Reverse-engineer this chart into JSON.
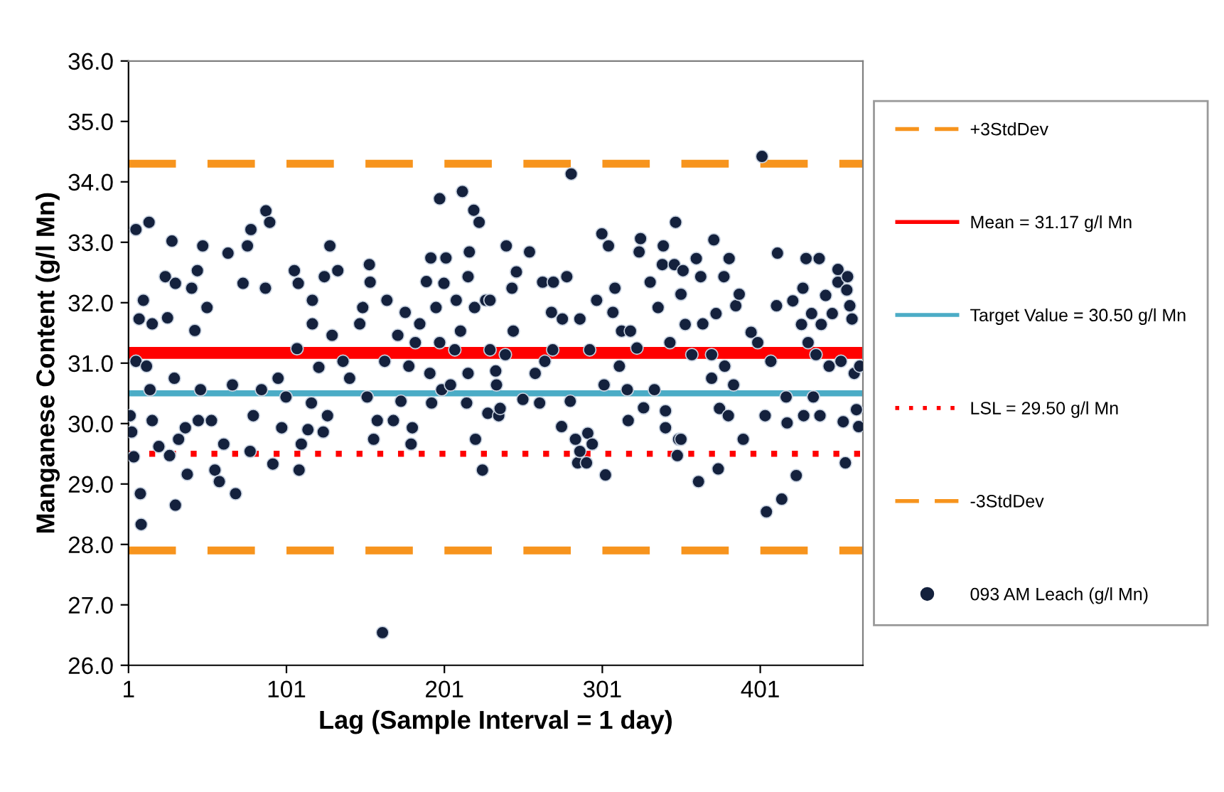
{
  "chart_data": {
    "type": "scatter",
    "xlabel": "Lag (Sample Interval = 1 day)",
    "ylabel": "Manganese Content (g/l Mn)",
    "xlim": [
      1,
      466
    ],
    "xticks": [
      1,
      101,
      201,
      301,
      401
    ],
    "ylim": [
      26,
      36
    ],
    "yticks": [
      {
        "value": 26,
        "label": "26.0"
      },
      {
        "value": 27,
        "label": "27.0"
      },
      {
        "value": 28,
        "label": "28.0"
      },
      {
        "value": 29,
        "label": "29.0"
      },
      {
        "value": 30,
        "label": "30.0"
      },
      {
        "value": 31,
        "label": "31.0"
      },
      {
        "value": 32,
        "label": "32.0"
      },
      {
        "value": 33,
        "label": "33.0"
      },
      {
        "value": 34,
        "label": "34.0"
      },
      {
        "value": 35,
        "label": "35.0"
      },
      {
        "value": 36,
        "label": "36.0"
      }
    ],
    "grid": false,
    "legend": "right",
    "marker": "circle",
    "ref_lines": [
      {
        "axis": "y",
        "value": 34.3,
        "label": "+3StdDev",
        "color": "#f7941d",
        "line_style": "dashed"
      },
      {
        "axis": "y",
        "value": 31.17,
        "label": "Mean = 31.17 g/l Mn",
        "color": "#ff0000",
        "line_style": "solid"
      },
      {
        "axis": "y",
        "value": 30.5,
        "label": "Target Value = 30.50 g/l Mn",
        "color": "#4bacc6",
        "line_style": "solid"
      },
      {
        "axis": "y",
        "value": 29.5,
        "label": "LSL = 29.50 g/l Mn",
        "color": "#ff0000",
        "line_style": "dotted"
      },
      {
        "axis": "y",
        "value": 27.9,
        "label": "-3StdDev",
        "color": "#f7941d",
        "line_style": "dashed"
      }
    ],
    "series": [
      {
        "name": "093 AM Leach (g/l Mn)",
        "color": "#14213d",
        "x": [
          2,
          3,
          4.3,
          5.7,
          5.7,
          7.7,
          8.5,
          9,
          10.4,
          12.4,
          14,
          14.6,
          16,
          16,
          20.2,
          24.3,
          25.7,
          27,
          28.5,
          30,
          30.7,
          30.7,
          32.7,
          37,
          38.2,
          41,
          43,
          44.6,
          45.2,
          46.6,
          48,
          50.7,
          53.5,
          55.7,
          58.5,
          61.3,
          64,
          66.8,
          68.8,
          73.5,
          76.3,
          78,
          78.5,
          80,
          85.2,
          87.7,
          88,
          90.4,
          92.4,
          95.7,
          98,
          100.7,
          106,
          107.7,
          108.5,
          109,
          110.4,
          114.6,
          116.8,
          117.4,
          117.4,
          121.5,
          124.3,
          125,
          127,
          128.5,
          129.9,
          133.5,
          136.8,
          141,
          147.4,
          149.3,
          152.1,
          153.5,
          154,
          156.2,
          158.5,
          161.8,
          163.2,
          164.6,
          168.7,
          171.5,
          173.5,
          176.2,
          178.5,
          179.9,
          180.7,
          182.6,
          185.4,
          189.6,
          191.8,
          192.4,
          192.9,
          195.7,
          198,
          198,
          199.3,
          200.7,
          202,
          204.9,
          207.6,
          208.5,
          211.2,
          212.4,
          215.1,
          216,
          216,
          216.8,
          219.6,
          220.1,
          220.7,
          223,
          225.1,
          227.1,
          228.5,
          229.9,
          229.9,
          233.5,
          234,
          235.4,
          236.3,
          239.6,
          240.2,
          243.8,
          244.6,
          246.6,
          250.7,
          254.9,
          258.5,
          261.3,
          263.2,
          264.6,
          268.8,
          269.6,
          270,
          275.2,
          275.7,
          278.5,
          280.7,
          281.3,
          284,
          285.4,
          286.8,
          286.8,
          291,
          291.8,
          293,
          294.6,
          297.4,
          300.7,
          302.1,
          303,
          304.9,
          307.7,
          309,
          311.8,
          313.2,
          316.8,
          317.4,
          318.8,
          322.9,
          324.3,
          325.2,
          327.1,
          331.3,
          334,
          336.3,
          339,
          339.6,
          341,
          341,
          343.8,
          346.6,
          347.4,
          348.5,
          349.3,
          350.7,
          350.8,
          350.8,
          352.1,
          353.5,
          357.7,
          360.5,
          361.9,
          363.3,
          364.6,
          370.2,
          370.2,
          371.6,
          373,
          374.4,
          375.2,
          378,
          378.5,
          380.8,
          381.3,
          384.1,
          385.5,
          387.7,
          390.2,
          395.2,
          399.4,
          402.1,
          404.1,
          404.9,
          407.7,
          411.3,
          411.9,
          414.6,
          417.4,
          418,
          421.6,
          423.8,
          427.1,
          428,
          428.5,
          430,
          431.3,
          433.5,
          434.6,
          436.3,
          438.3,
          438.8,
          439.6,
          442.4,
          444.6,
          446.6,
          450.2,
          450.2,
          452.1,
          453.5,
          454.9,
          455.8,
          456.3,
          457.7,
          459.1,
          460.5,
          461.9,
          463.3,
          464
        ],
        "values": [
          30.13,
          29.86,
          29.45,
          33.21,
          31.03,
          31.73,
          28.84,
          28.33,
          32.04,
          30.95,
          33.33,
          30.56,
          31.65,
          30.05,
          29.62,
          32.43,
          31.75,
          29.47,
          33.02,
          30.75,
          32.32,
          28.65,
          29.74,
          29.93,
          29.16,
          32.24,
          31.54,
          32.53,
          30.05,
          30.56,
          32.94,
          31.92,
          30.05,
          29.23,
          29.04,
          29.66,
          32.82,
          30.64,
          28.84,
          32.32,
          32.94,
          29.54,
          33.21,
          30.13,
          30.56,
          32.24,
          33.52,
          33.33,
          29.33,
          30.75,
          29.93,
          30.44,
          32.53,
          31.24,
          32.32,
          29.23,
          29.66,
          29.9,
          30.34,
          32.04,
          31.65,
          30.93,
          29.86,
          32.43,
          30.13,
          32.94,
          31.46,
          32.53,
          31.03,
          30.75,
          31.65,
          31.92,
          30.44,
          32.63,
          32.34,
          29.74,
          30.05,
          26.54,
          31.03,
          32.04,
          30.05,
          31.46,
          30.37,
          31.84,
          30.95,
          29.66,
          29.93,
          31.34,
          31.65,
          32.35,
          30.83,
          32.74,
          30.34,
          31.92,
          33.72,
          31.34,
          30.56,
          32.32,
          32.74,
          30.64,
          31.22,
          32.04,
          31.53,
          33.84,
          30.34,
          32.43,
          30.83,
          32.84,
          33.53,
          31.92,
          29.74,
          33.33,
          29.23,
          32.04,
          30.17,
          31.22,
          32.04,
          30.87,
          30.64,
          30.13,
          30.25,
          31.14,
          32.94,
          32.24,
          31.53,
          32.51,
          30.4,
          32.84,
          30.83,
          30.34,
          32.34,
          31.03,
          31.84,
          31.22,
          32.34,
          29.95,
          31.73,
          32.43,
          30.37,
          34.13,
          29.74,
          29.35,
          29.54,
          31.73,
          29.35,
          29.84,
          31.22,
          29.66,
          32.04,
          33.14,
          30.64,
          29.15,
          32.94,
          31.84,
          32.24,
          30.95,
          31.53,
          30.56,
          30.05,
          31.53,
          31.25,
          32.84,
          33.06,
          30.26,
          32.34,
          30.56,
          31.92,
          32.63,
          32.94,
          30.21,
          29.93,
          31.34,
          32.63,
          33.33,
          29.47,
          29.74,
          32.14,
          32.14,
          29.74,
          32.53,
          31.64,
          31.14,
          32.73,
          29.04,
          32.43,
          31.65,
          31.14,
          30.75,
          33.04,
          31.82,
          29.25,
          30.25,
          32.43,
          30.95,
          30.13,
          32.73,
          30.64,
          31.95,
          32.14,
          29.74,
          31.51,
          31.34,
          34.42,
          30.13,
          28.54,
          31.03,
          31.95,
          32.82,
          28.75,
          30.44,
          30.01,
          32.03,
          29.14,
          31.64,
          32.24,
          30.13,
          32.73,
          31.34,
          31.82,
          30.44,
          31.14,
          32.73,
          30.13,
          31.64,
          32.12,
          30.95,
          31.82,
          32.55,
          32.34,
          31.03,
          30.03,
          29.35,
          32.21,
          32.43,
          31.95,
          31.73,
          30.83,
          30.23,
          29.95,
          30.95
        ]
      }
    ]
  }
}
